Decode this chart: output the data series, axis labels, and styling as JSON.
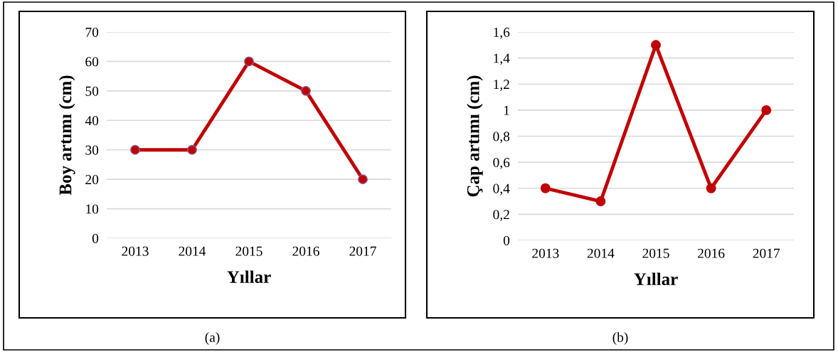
{
  "chart_data": [
    {
      "type": "line",
      "categories": [
        "2013",
        "2014",
        "2015",
        "2016",
        "2017"
      ],
      "series": [
        {
          "color": "#c00000",
          "values": [
            30,
            30,
            60,
            50,
            20
          ]
        }
      ],
      "xlabel": "Yıllar",
      "ylabel": "Boy artımı (cm)",
      "ylim": [
        0,
        70
      ],
      "yticks": [
        0,
        10,
        20,
        30,
        40,
        50,
        60,
        70
      ],
      "grid": "y",
      "marker": "circle",
      "line_style": "solid",
      "annotations": [
        "(a)"
      ]
    },
    {
      "type": "line",
      "categories": [
        "2013",
        "2014",
        "2015",
        "2016",
        "2017"
      ],
      "series": [
        {
          "color": "#c00000",
          "values": [
            0.4,
            0.3,
            1.5,
            0.4,
            1.0
          ]
        }
      ],
      "xlabel": "Yıllar",
      "ylabel": "Çap artımı (cm)",
      "ylim": [
        0,
        1.6
      ],
      "yticks": [
        0,
        {
          "value": 0.2,
          "label": "0,2"
        },
        {
          "value": 0.4,
          "label": "0,4"
        },
        {
          "value": 0.6,
          "label": "0,6"
        },
        {
          "value": 0.8,
          "label": "0,8"
        },
        1,
        {
          "value": 1.2,
          "label": "1,2"
        },
        {
          "value": 1.4,
          "label": "1,4"
        },
        {
          "value": 1.6,
          "label": "1,6"
        }
      ],
      "grid": "y",
      "marker": "circle",
      "line_style": "solid",
      "annotations": [
        "(b)"
      ]
    }
  ]
}
